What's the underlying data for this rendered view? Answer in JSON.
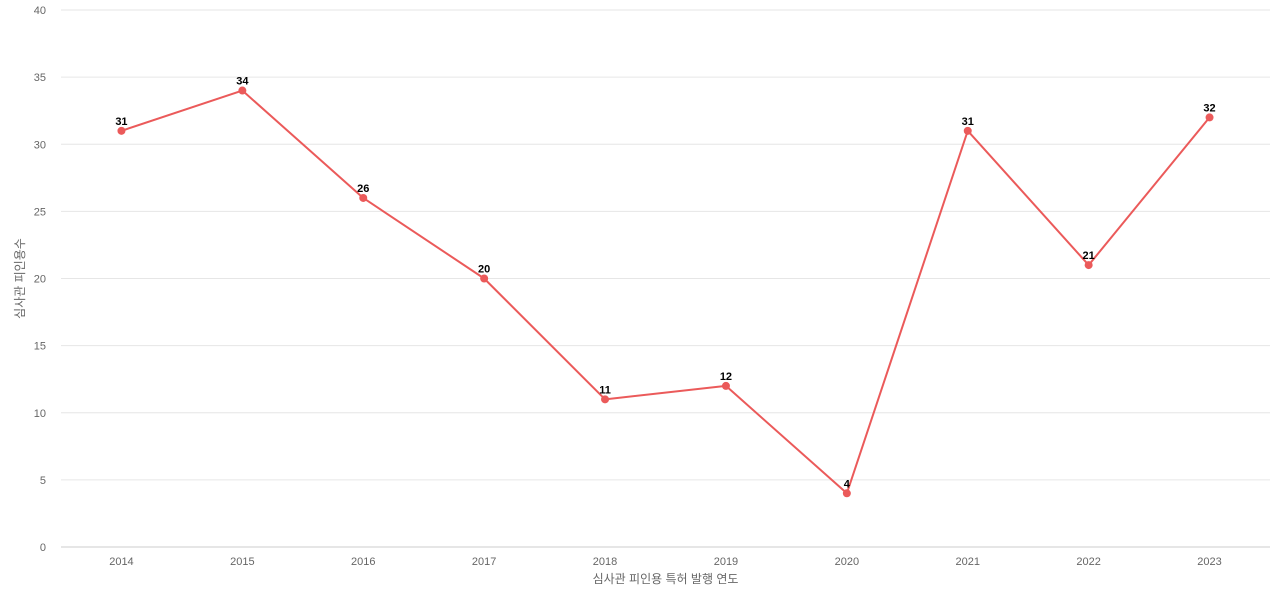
{
  "chart_data": {
    "type": "line",
    "title": "",
    "xlabel": "심사관 피인용 특허 발행 연도",
    "ylabel": "심사관 피인용수",
    "categories": [
      "2014",
      "2015",
      "2016",
      "2017",
      "2018",
      "2019",
      "2020",
      "2021",
      "2022",
      "2023"
    ],
    "series": [
      {
        "values": [
          31,
          34,
          26,
          20,
          11,
          12,
          4,
          31,
          21,
          32
        ],
        "color": "#eb5a5a"
      }
    ],
    "ylim": [
      0,
      40
    ],
    "yticks": [
      0,
      5,
      10,
      15,
      20,
      25,
      30,
      35,
      40
    ],
    "grid": true,
    "data_labels": true,
    "legend": "none"
  }
}
